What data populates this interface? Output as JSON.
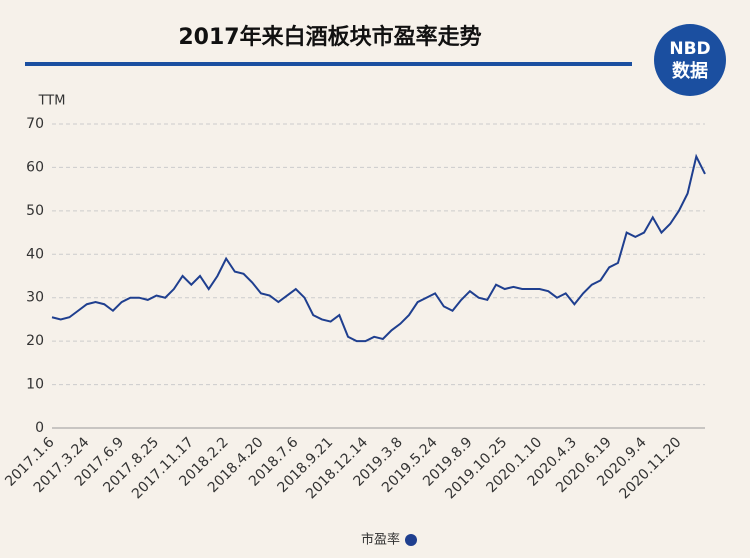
{
  "chart_data": {
    "type": "line",
    "title": "2017年来白酒板块市盈率走势",
    "y_label": "TTM",
    "logo": "NBD",
    "logo_text": "数据",
    "categories": [
      "2017.1.6",
      null,
      null,
      null,
      "2017.3.24",
      null,
      null,
      null,
      "2017.6.9",
      null,
      null,
      null,
      "2017.8.25",
      null,
      null,
      null,
      "2017.11.17",
      null,
      null,
      null,
      "2018.2.2",
      null,
      null,
      null,
      "2018.4.20",
      null,
      null,
      null,
      "2018.7.6",
      null,
      null,
      null,
      "2018.9.21",
      null,
      null,
      null,
      "2018.12.14",
      null,
      null,
      null,
      "2019.3.8",
      null,
      null,
      null,
      "2019.5.24",
      null,
      null,
      null,
      "2019.8.9",
      null,
      null,
      null,
      "2019.10.25",
      null,
      null,
      null,
      "2020.1.10",
      null,
      null,
      null,
      "2020.4.3",
      null,
      null,
      null,
      "2020.6.19",
      null,
      null,
      null,
      "2020.9.4",
      null,
      null,
      null,
      "2020.11.20",
      null,
      null,
      null
    ],
    "series": [
      {
        "name": "市盈率",
        "color": "#1f3f8f",
        "values": [
          25.5,
          25,
          25.5,
          27,
          28.5,
          29,
          28.5,
          27,
          29,
          30,
          30,
          29.5,
          30.5,
          30,
          32,
          35,
          33,
          35,
          32,
          35,
          39,
          36,
          35.5,
          33.5,
          31,
          30.5,
          29,
          30.5,
          32,
          30,
          26,
          25,
          24.5,
          26,
          21,
          20,
          20,
          21,
          20.5,
          22.5,
          24,
          26,
          29,
          30,
          31,
          28,
          27,
          29.5,
          31.5,
          30,
          29.5,
          33,
          32,
          32.5,
          32,
          32,
          32,
          31.5,
          30,
          31,
          28.5,
          31,
          33,
          34,
          37,
          38,
          45,
          44,
          45,
          48.5,
          45,
          47,
          50,
          54,
          62.5,
          58.5
        ]
      }
    ],
    "ylim": [
      0,
      70
    ],
    "yticks": [
      0,
      10,
      20,
      30,
      40,
      50,
      60,
      70
    ],
    "grid": true
  }
}
